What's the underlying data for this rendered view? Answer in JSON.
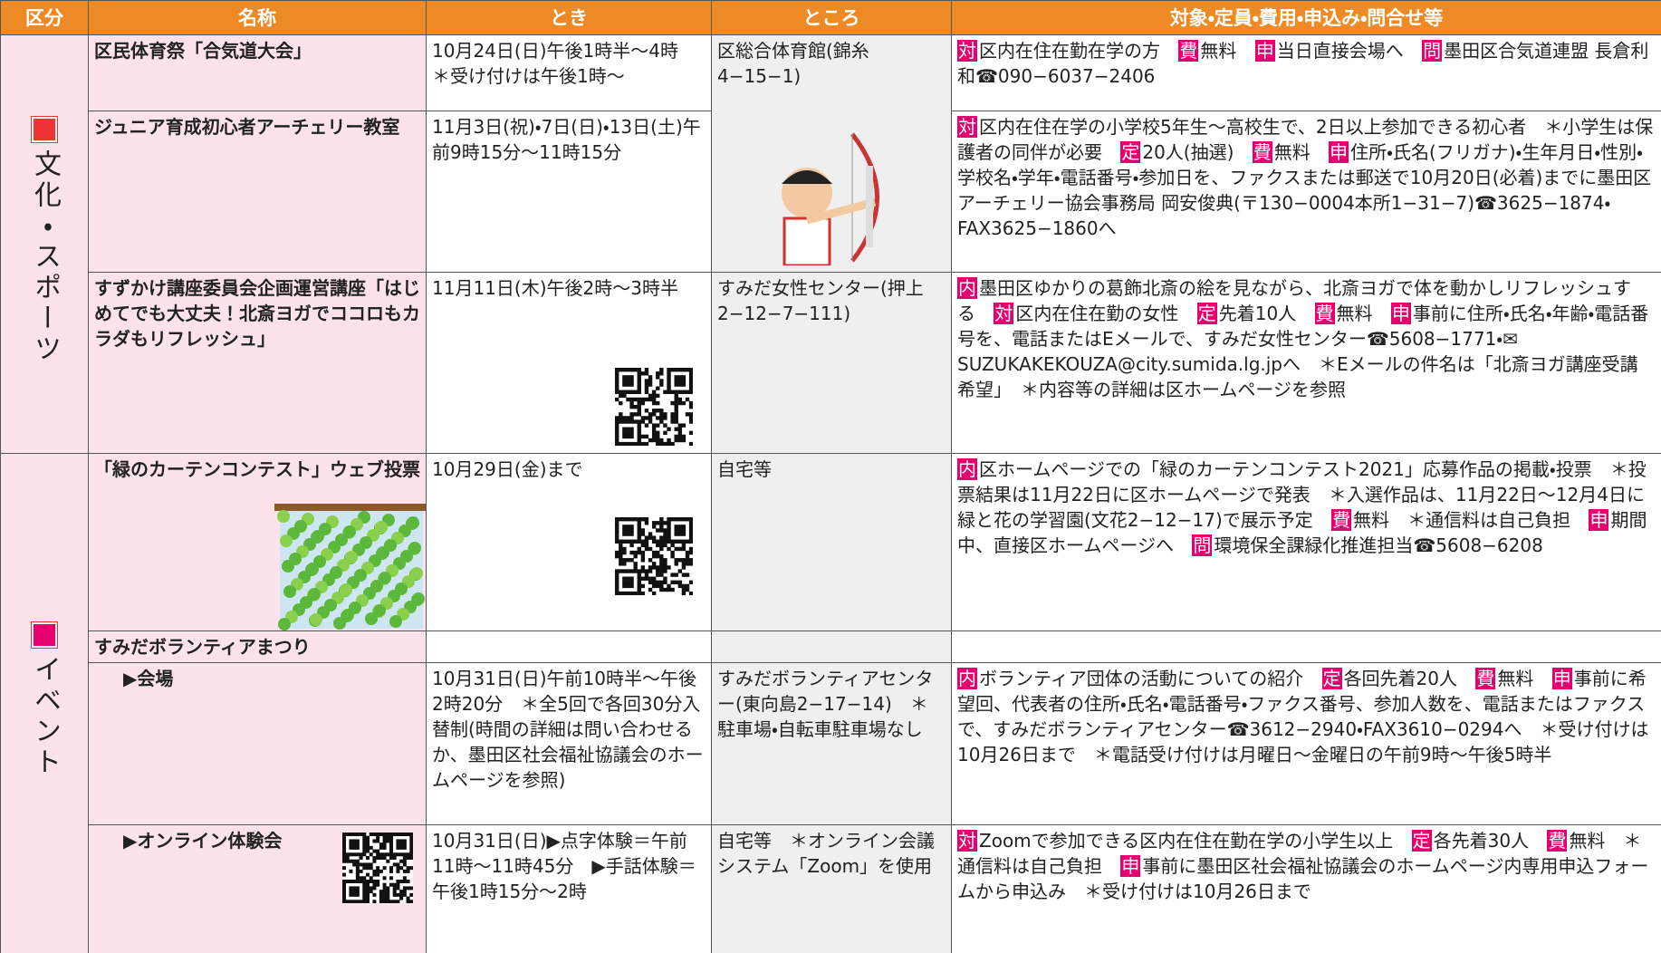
{
  "header": [
    "区分",
    "名称",
    "とき",
    "ところ",
    "対象・定員・費用・申込み・問合せ等"
  ],
  "sections": [
    {
      "label": "文化・スポーツ",
      "rows": [
        {
          "name": "区民体育祭「合気道大会」",
          "when": "10月24日(日)午後1時半～4時　＊受け付けは午後1時～",
          "where": "区総合体育館(錦糸4−15−1)",
          "details": [
            {
              "tag": "対",
              "text": "区内在住在勤在学の方"
            },
            {
              "tag": "費",
              "text": "無料"
            },
            {
              "tag": "申",
              "text": "当日直接会場へ"
            },
            {
              "tag": "問",
              "text": "墨田区合気道連盟 長倉利和☎090−6037−2406"
            }
          ]
        },
        {
          "name": "ジュニア育成初心者アーチェリー教室",
          "when": "11月3日(祝)・7日(日)・13日(土)午前9時15分～11時15分",
          "details": [
            {
              "tag": "対",
              "text": "区内在住在学の小学校5年生～高校生で、2日以上参加できる初心者　＊小学生は保護者の同伴が必要"
            },
            {
              "tag": "定",
              "text": "20人(抽選)"
            },
            {
              "tag": "費",
              "text": "無料"
            },
            {
              "tag": "申",
              "text": "住所・氏名(フリガナ)・生年月日・性別・学校名・学年・電話番号・参加日を、ファクスまたは郵送で10月20日(必着)までに墨田区アーチェリー協会事務局 岡安俊典(〒130−0004本所1−31−7)☎3625−1874・FAX3625−1860へ"
            }
          ]
        },
        {
          "name": "すずかけ講座委員会企画運営講座「はじめてでも大丈夫！北斎ヨガでココロもカラダもリフレッシュ」",
          "when": "11月11日(木)午後2時～3時半",
          "where": "すみだ女性センター(押上2−12−7−111)",
          "details": [
            {
              "tag": "内",
              "text": "墨田区ゆかりの葛飾北斎の絵を見ながら、北斎ヨガで体を動かしリフレッシュする"
            },
            {
              "tag": "対",
              "text": "区内在住在勤の女性"
            },
            {
              "tag": "定",
              "text": "先着10人"
            },
            {
              "tag": "費",
              "text": "無料"
            },
            {
              "tag": "申",
              "text": "事前に住所・氏名・年齢・電話番号を、電話またはEメールで、すみだ女性センター☎5608−1771・✉SUZUKAKEKOUZA@city.sumida.lg.jpへ　＊Eメールの件名は「北斎ヨガ講座受講希望」　＊内容等の詳細は区ホームページを参照"
            }
          ]
        }
      ]
    },
    {
      "label": "イベント",
      "rows": [
        {
          "name": "「緑のカーテンコンテスト」ウェブ投票",
          "when": "10月29日(金)まで",
          "where": "自宅等",
          "details": [
            {
              "tag": "内",
              "text": "区ホームページでの「緑のカーテンコンテスト2021」応募作品の掲載・投票　＊投票結果は11月22日に区ホームページで発表　＊入選作品は、11月22日～12月4日に緑と花の学習園(文花2−12−17)で展示予定"
            },
            {
              "tag": "費",
              "text": "無料　＊通信料は自己負担"
            },
            {
              "tag": "申",
              "text": "期間中、直接区ホームページへ"
            },
            {
              "tag": "問",
              "text": "環境保全課緑化推進担当☎5608−6208"
            }
          ]
        },
        {
          "name": "すみだボランティアまつり"
        },
        {
          "name": "▶会場",
          "when": "10月31日(日)午前10時半～午後2時20分　＊全5回で各回30分入替制(時間の詳細は問い合わせるか、墨田区社会福祉協議会のホームページを参照)",
          "where": "すみだボランティアセンター(東向島2−17−14)　＊駐車場・自転車駐車場なし",
          "details": [
            {
              "tag": "内",
              "text": "ボランティア団体の活動についての紹介"
            },
            {
              "tag": "定",
              "text": "各回先着20人"
            },
            {
              "tag": "費",
              "text": "無料"
            },
            {
              "tag": "申",
              "text": "事前に希望回、代表者の住所・氏名・電話番号・ファクス番号、参加人数を、電話またはファクスで、すみだボランティアセンター☎3612−2940・FAX3610−0294へ　＊受け付けは10月26日まで　＊電話受け付けは月曜日～金曜日の午前9時～午後5時半"
            }
          ]
        },
        {
          "name": "▶オンライン体験会",
          "when": "10月31日(日)▶点字体験＝午前11時～11時45分　▶手話体験＝午後1時15分～2時",
          "where": "自宅等　＊オンライン会議システム「Zoom」を使用",
          "details": [
            {
              "tag": "対",
              "text": "Zoomで参加できる区内在住在勤在学の小学生以上"
            },
            {
              "tag": "定",
              "text": "各先着30人"
            },
            {
              "tag": "費",
              "text": "無料　＊通信料は自己負担"
            },
            {
              "tag": "申",
              "text": "事前に墨田区社会福祉協議会のホームページ内専用申込フォームから申込み　＊受け付けは10月26日まで"
            }
          ]
        }
      ]
    }
  ]
}
